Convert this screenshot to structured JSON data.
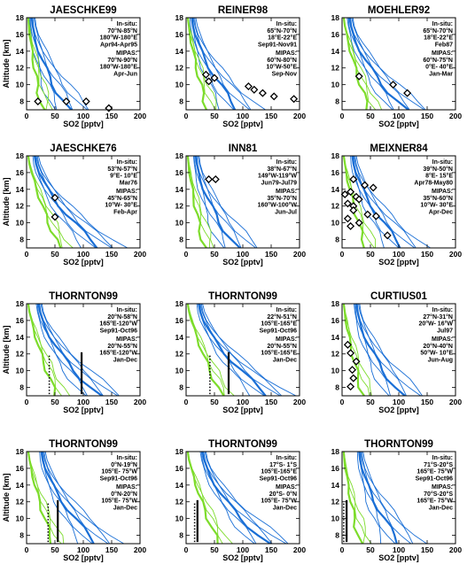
{
  "figure": {
    "ylabel": "Altitude [km]",
    "xlabel": "SO2 [pptv]"
  },
  "colors": {
    "blue": "#1a6fd6",
    "green": "#7ddc2b",
    "frame": "#000000"
  },
  "chart_data": [
    {
      "type": "line",
      "title": "JAESCHKE99",
      "insitu_label": "In-situ:",
      "insitu": [
        "70°N-85°N",
        "180°W-180°E",
        "Apr94-Apr95"
      ],
      "mipas_label": "MIPAS:",
      "mipas": [
        "70°N-90°N",
        "180°W-180°E",
        "Apr-Jun"
      ],
      "xlabel": "SO2 [pptv]",
      "ylabel": "Altitude [km]",
      "xlim": [
        0,
        200
      ],
      "ylim": [
        7,
        18
      ],
      "xticks": [
        0,
        50,
        100,
        150,
        200
      ],
      "yticks": [
        8,
        10,
        12,
        14,
        16,
        18
      ],
      "diamonds": [
        [
          20,
          8
        ],
        [
          70,
          8
        ],
        [
          105,
          8
        ],
        [
          145,
          7.2
        ]
      ],
      "bars": []
    },
    {
      "type": "line",
      "title": "REINER98",
      "insitu_label": "In-situ:",
      "insitu": [
        "65°N-70°N",
        "18°E-22°E",
        "Sep91-Nov91"
      ],
      "mipas_label": "MIPAS:",
      "mipas": [
        "60°N-80°N",
        "10°W-50°E",
        "Sep-Nov"
      ],
      "xlabel": "SO2 [pptv]",
      "ylabel": "",
      "xlim": [
        0,
        200
      ],
      "ylim": [
        7,
        18
      ],
      "xticks": [
        0,
        50,
        100,
        150,
        200
      ],
      "yticks": [
        8,
        10,
        12,
        14,
        16,
        18
      ],
      "diamonds": [
        [
          35,
          11.2
        ],
        [
          40,
          10.4
        ],
        [
          50,
          10.8
        ],
        [
          110,
          9.8
        ],
        [
          120,
          9.4
        ],
        [
          135,
          9
        ],
        [
          155,
          8.6
        ],
        [
          190,
          8.3
        ]
      ],
      "bars": []
    },
    {
      "type": "line",
      "title": "MOEHLER92",
      "insitu_label": "In-situ:",
      "insitu": [
        "65°N-70°N",
        "18°E-22°E",
        "Feb87"
      ],
      "mipas_label": "MIPAS:",
      "mipas": [
        "60°N-75°N",
        "0°E- 40°E",
        "Jan-Mar"
      ],
      "xlabel": "SO2 [pptv]",
      "ylabel": "",
      "xlim": [
        0,
        200
      ],
      "ylim": [
        7,
        18
      ],
      "xticks": [
        0,
        50,
        100,
        150,
        200
      ],
      "yticks": [
        8,
        10,
        12,
        14,
        16,
        18
      ],
      "diamonds": [
        [
          30,
          11
        ],
        [
          90,
          10
        ],
        [
          115,
          9
        ]
      ],
      "bars": []
    },
    {
      "type": "line",
      "title": "JAESCHKE76",
      "insitu_label": "In-situ:",
      "insitu": [
        "53°N-57°N",
        "9°E- 10°E",
        "Mar76"
      ],
      "mipas_label": "MIPAS:",
      "mipas": [
        "45°N-65°N",
        "10°W- 30°E",
        "Feb-Apr"
      ],
      "xlabel": "SO2 [pptv]",
      "ylabel": "Altitude [km]",
      "xlim": [
        0,
        200
      ],
      "ylim": [
        7,
        18
      ],
      "xticks": [
        0,
        50,
        100,
        150,
        200
      ],
      "yticks": [
        8,
        10,
        12,
        14,
        16,
        18
      ],
      "diamonds": [
        [
          50,
          13
        ],
        [
          50,
          10.7
        ]
      ],
      "bars": []
    },
    {
      "type": "line",
      "title": "INN81",
      "insitu_label": "In-situ:",
      "insitu": [
        "38°N-67°N",
        "149°W-119°W",
        "Jun79-Jul79"
      ],
      "mipas_label": "MIPAS:",
      "mipas": [
        "35°N-70°N",
        "160°W-100°W",
        "Jun-Jul"
      ],
      "xlabel": "SO2 [pptv]",
      "ylabel": "",
      "xlim": [
        0,
        200
      ],
      "ylim": [
        7,
        18
      ],
      "xticks": [
        0,
        50,
        100,
        150,
        200
      ],
      "yticks": [
        8,
        10,
        12,
        14,
        16,
        18
      ],
      "diamonds": [
        [
          40,
          15.2
        ],
        [
          52,
          15.2
        ]
      ],
      "bars": []
    },
    {
      "type": "line",
      "title": "MEIXNER84",
      "insitu_label": "In-situ:",
      "insitu": [
        "39°N-50°N",
        "8°E- 15°E",
        "Apr78-May80"
      ],
      "mipas_label": "MIPAS:",
      "mipas": [
        "35°N-60°N",
        "10°W- 30°E",
        "Apr-Dec"
      ],
      "xlabel": "SO2 [pptv]",
      "ylabel": "",
      "xlim": [
        0,
        200
      ],
      "ylim": [
        7,
        18
      ],
      "xticks": [
        0,
        50,
        100,
        150,
        200
      ],
      "yticks": [
        8,
        10,
        12,
        14,
        16,
        18
      ],
      "diamonds": [
        [
          20,
          15.2
        ],
        [
          40,
          14.5
        ],
        [
          55,
          14.2
        ],
        [
          15,
          13.7
        ],
        [
          5,
          13.4
        ],
        [
          25,
          13.1
        ],
        [
          30,
          12.8
        ],
        [
          10,
          12.3
        ],
        [
          20,
          12
        ],
        [
          20,
          11.5
        ],
        [
          45,
          11
        ],
        [
          60,
          10.8
        ],
        [
          10,
          10.5
        ],
        [
          30,
          10
        ],
        [
          15,
          9.6
        ],
        [
          80,
          8.5
        ]
      ],
      "bars": []
    },
    {
      "type": "line",
      "title": "THORNTON99",
      "insitu_label": "In-situ:",
      "insitu": [
        "20°N-58°N",
        "165°E-120°W",
        "Sep91-Oct96"
      ],
      "mipas_label": "MIPAS:",
      "mipas": [
        "20°N-55°N",
        "165°E-120°W",
        "Jan-Dec"
      ],
      "xlabel": "SO2 [pptv]",
      "ylabel": "Altitude [km]",
      "xlim": [
        0,
        200
      ],
      "ylim": [
        7,
        18
      ],
      "xticks": [
        0,
        50,
        100,
        150,
        200
      ],
      "yticks": [
        8,
        10,
        12,
        14,
        16,
        18
      ],
      "diamonds": [],
      "bars": [
        {
          "x": 40,
          "y0": 7.2,
          "y1": 11.8,
          "style": "dotted"
        },
        {
          "x": 97,
          "y0": 7.2,
          "y1": 12.2,
          "style": "solid"
        }
      ]
    },
    {
      "type": "line",
      "title": "THORNTON99",
      "insitu_label": "In-situ:",
      "insitu": [
        "22°N-51°N",
        "105°E-165°E",
        "Sep91-Oct96"
      ],
      "mipas_label": "MIPAS:",
      "mipas": [
        "20°N-55°N",
        "105°E-165°E",
        "Jan-Dec"
      ],
      "xlabel": "SO2 [pptv]",
      "ylabel": "",
      "xlim": [
        0,
        200
      ],
      "ylim": [
        7,
        18
      ],
      "xticks": [
        0,
        50,
        100,
        150,
        200
      ],
      "yticks": [
        8,
        10,
        12,
        14,
        16,
        18
      ],
      "diamonds": [],
      "bars": [
        {
          "x": 42,
          "y0": 7.2,
          "y1": 11.8,
          "style": "dotted"
        },
        {
          "x": 75,
          "y0": 7.2,
          "y1": 12.2,
          "style": "solid"
        }
      ]
    },
    {
      "type": "line",
      "title": "CURTIUS01",
      "insitu_label": "In-situ:",
      "insitu": [
        "27°N-31°N",
        "20°W- 16°W",
        "Jul97"
      ],
      "mipas_label": "MIPAS:",
      "mipas": [
        "20°N-40°N",
        "50°W- 10°E",
        "Jun-Aug"
      ],
      "xlabel": "SO2 [pptv]",
      "ylabel": "",
      "xlim": [
        0,
        200
      ],
      "ylim": [
        7,
        18
      ],
      "xticks": [
        0,
        50,
        100,
        150,
        200
      ],
      "yticks": [
        8,
        10,
        12,
        14,
        16,
        18
      ],
      "diamonds": [
        [
          10,
          13.1
        ],
        [
          15,
          12.1
        ],
        [
          25,
          11.1
        ],
        [
          18,
          10.1
        ],
        [
          20,
          9.1
        ],
        [
          15,
          8.1
        ]
      ],
      "bars": []
    },
    {
      "type": "line",
      "title": "THORNTON99",
      "insitu_label": "In-situ:",
      "insitu": [
        "0°N-19°N",
        "105°E- 75°W",
        "Sep91-Oct96"
      ],
      "mipas_label": "MIPAS:",
      "mipas": [
        "0°N-20°N",
        "105°E- 75°W",
        "Jan-Dec"
      ],
      "xlabel": "SO2 [pptv]",
      "ylabel": "Altitude [km]",
      "xlim": [
        0,
        200
      ],
      "ylim": [
        7,
        18
      ],
      "xticks": [
        0,
        50,
        100,
        150,
        200
      ],
      "yticks": [
        8,
        10,
        12,
        14,
        16,
        18
      ],
      "diamonds": [],
      "bars": [
        {
          "x": 38,
          "y0": 7.2,
          "y1": 11.8,
          "style": "dotted"
        },
        {
          "x": 55,
          "y0": 7.2,
          "y1": 12.2,
          "style": "solid"
        }
      ]
    },
    {
      "type": "line",
      "title": "THORNTON99",
      "insitu_label": "In-situ:",
      "insitu": [
        "17°S- 1°S",
        "105°E-165°E",
        "Sep91-Oct96"
      ],
      "mipas_label": "MIPAS:",
      "mipas": [
        "20°S- 0°N",
        "105°E- 75°W",
        "Jan-Dec"
      ],
      "xlabel": "SO2 [pptv]",
      "ylabel": "",
      "xlim": [
        0,
        200
      ],
      "ylim": [
        7,
        18
      ],
      "xticks": [
        0,
        50,
        100,
        150,
        200
      ],
      "yticks": [
        8,
        10,
        12,
        14,
        16,
        18
      ],
      "diamonds": [],
      "bars": [
        {
          "x": 15,
          "y0": 7.2,
          "y1": 11.8,
          "style": "dotted"
        },
        {
          "x": 20,
          "y0": 7.2,
          "y1": 12.2,
          "style": "solid"
        }
      ]
    },
    {
      "type": "line",
      "title": "THORNTON99",
      "insitu_label": "In-situ:",
      "insitu": [
        "71°S-20°S",
        "165°E- 75°W",
        "Sep91-Oct96"
      ],
      "mipas_label": "MIPAS:",
      "mipas": [
        "70°S-20°S",
        "165°E- 75°W",
        "Jan-Dec"
      ],
      "xlabel": "SO2 [pptv]",
      "ylabel": "",
      "xlim": [
        0,
        200
      ],
      "ylim": [
        7,
        18
      ],
      "xticks": [
        0,
        50,
        100,
        150,
        200
      ],
      "yticks": [
        8,
        10,
        12,
        14,
        16,
        18
      ],
      "diamonds": [],
      "bars": [
        {
          "x": 3,
          "y0": 7.2,
          "y1": 11.8,
          "style": "dotted"
        },
        {
          "x": 8,
          "y0": 7.2,
          "y1": 12.2,
          "style": "solid"
        }
      ]
    }
  ]
}
